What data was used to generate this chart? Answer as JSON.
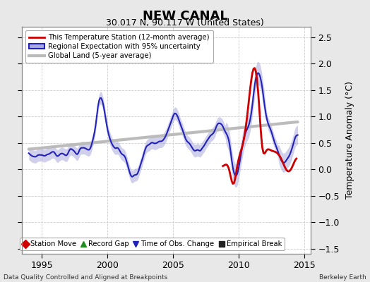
{
  "title": "NEW CANAL",
  "subtitle": "30.017 N, 90.117 W (United States)",
  "ylabel": "Temperature Anomaly (°C)",
  "xlabel_left": "Data Quality Controlled and Aligned at Breakpoints",
  "xlabel_right": "Berkeley Earth",
  "xlim": [
    1993.5,
    2015.5
  ],
  "ylim": [
    -1.6,
    2.7
  ],
  "yticks": [
    -1.5,
    -1.0,
    -0.5,
    0.0,
    0.5,
    1.0,
    1.5,
    2.0,
    2.5
  ],
  "xticks": [
    1995,
    2000,
    2005,
    2010,
    2015
  ],
  "background_color": "#e8e8e8",
  "plot_bg_color": "#ffffff",
  "regional_color": "#2222bb",
  "regional_fill_color": "#aaaadd",
  "station_color": "#cc0000",
  "global_color": "#bbbbbb",
  "global_lw": 3,
  "legend_items": [
    {
      "label": "This Temperature Station (12-month average)",
      "color": "#cc0000",
      "lw": 2
    },
    {
      "label": "Regional Expectation with 95% uncertainty",
      "color": "#2222bb",
      "lw": 2
    },
    {
      "label": "Global Land (5-year average)",
      "color": "#bbbbbb",
      "lw": 3
    }
  ],
  "bottom_legend": [
    {
      "label": "Station Move",
      "marker": "D",
      "color": "#cc0000"
    },
    {
      "label": "Record Gap",
      "marker": "^",
      "color": "#228B22"
    },
    {
      "label": "Time of Obs. Change",
      "marker": "v",
      "color": "#2222bb"
    },
    {
      "label": "Empirical Break",
      "marker": "s",
      "color": "#222222"
    }
  ]
}
